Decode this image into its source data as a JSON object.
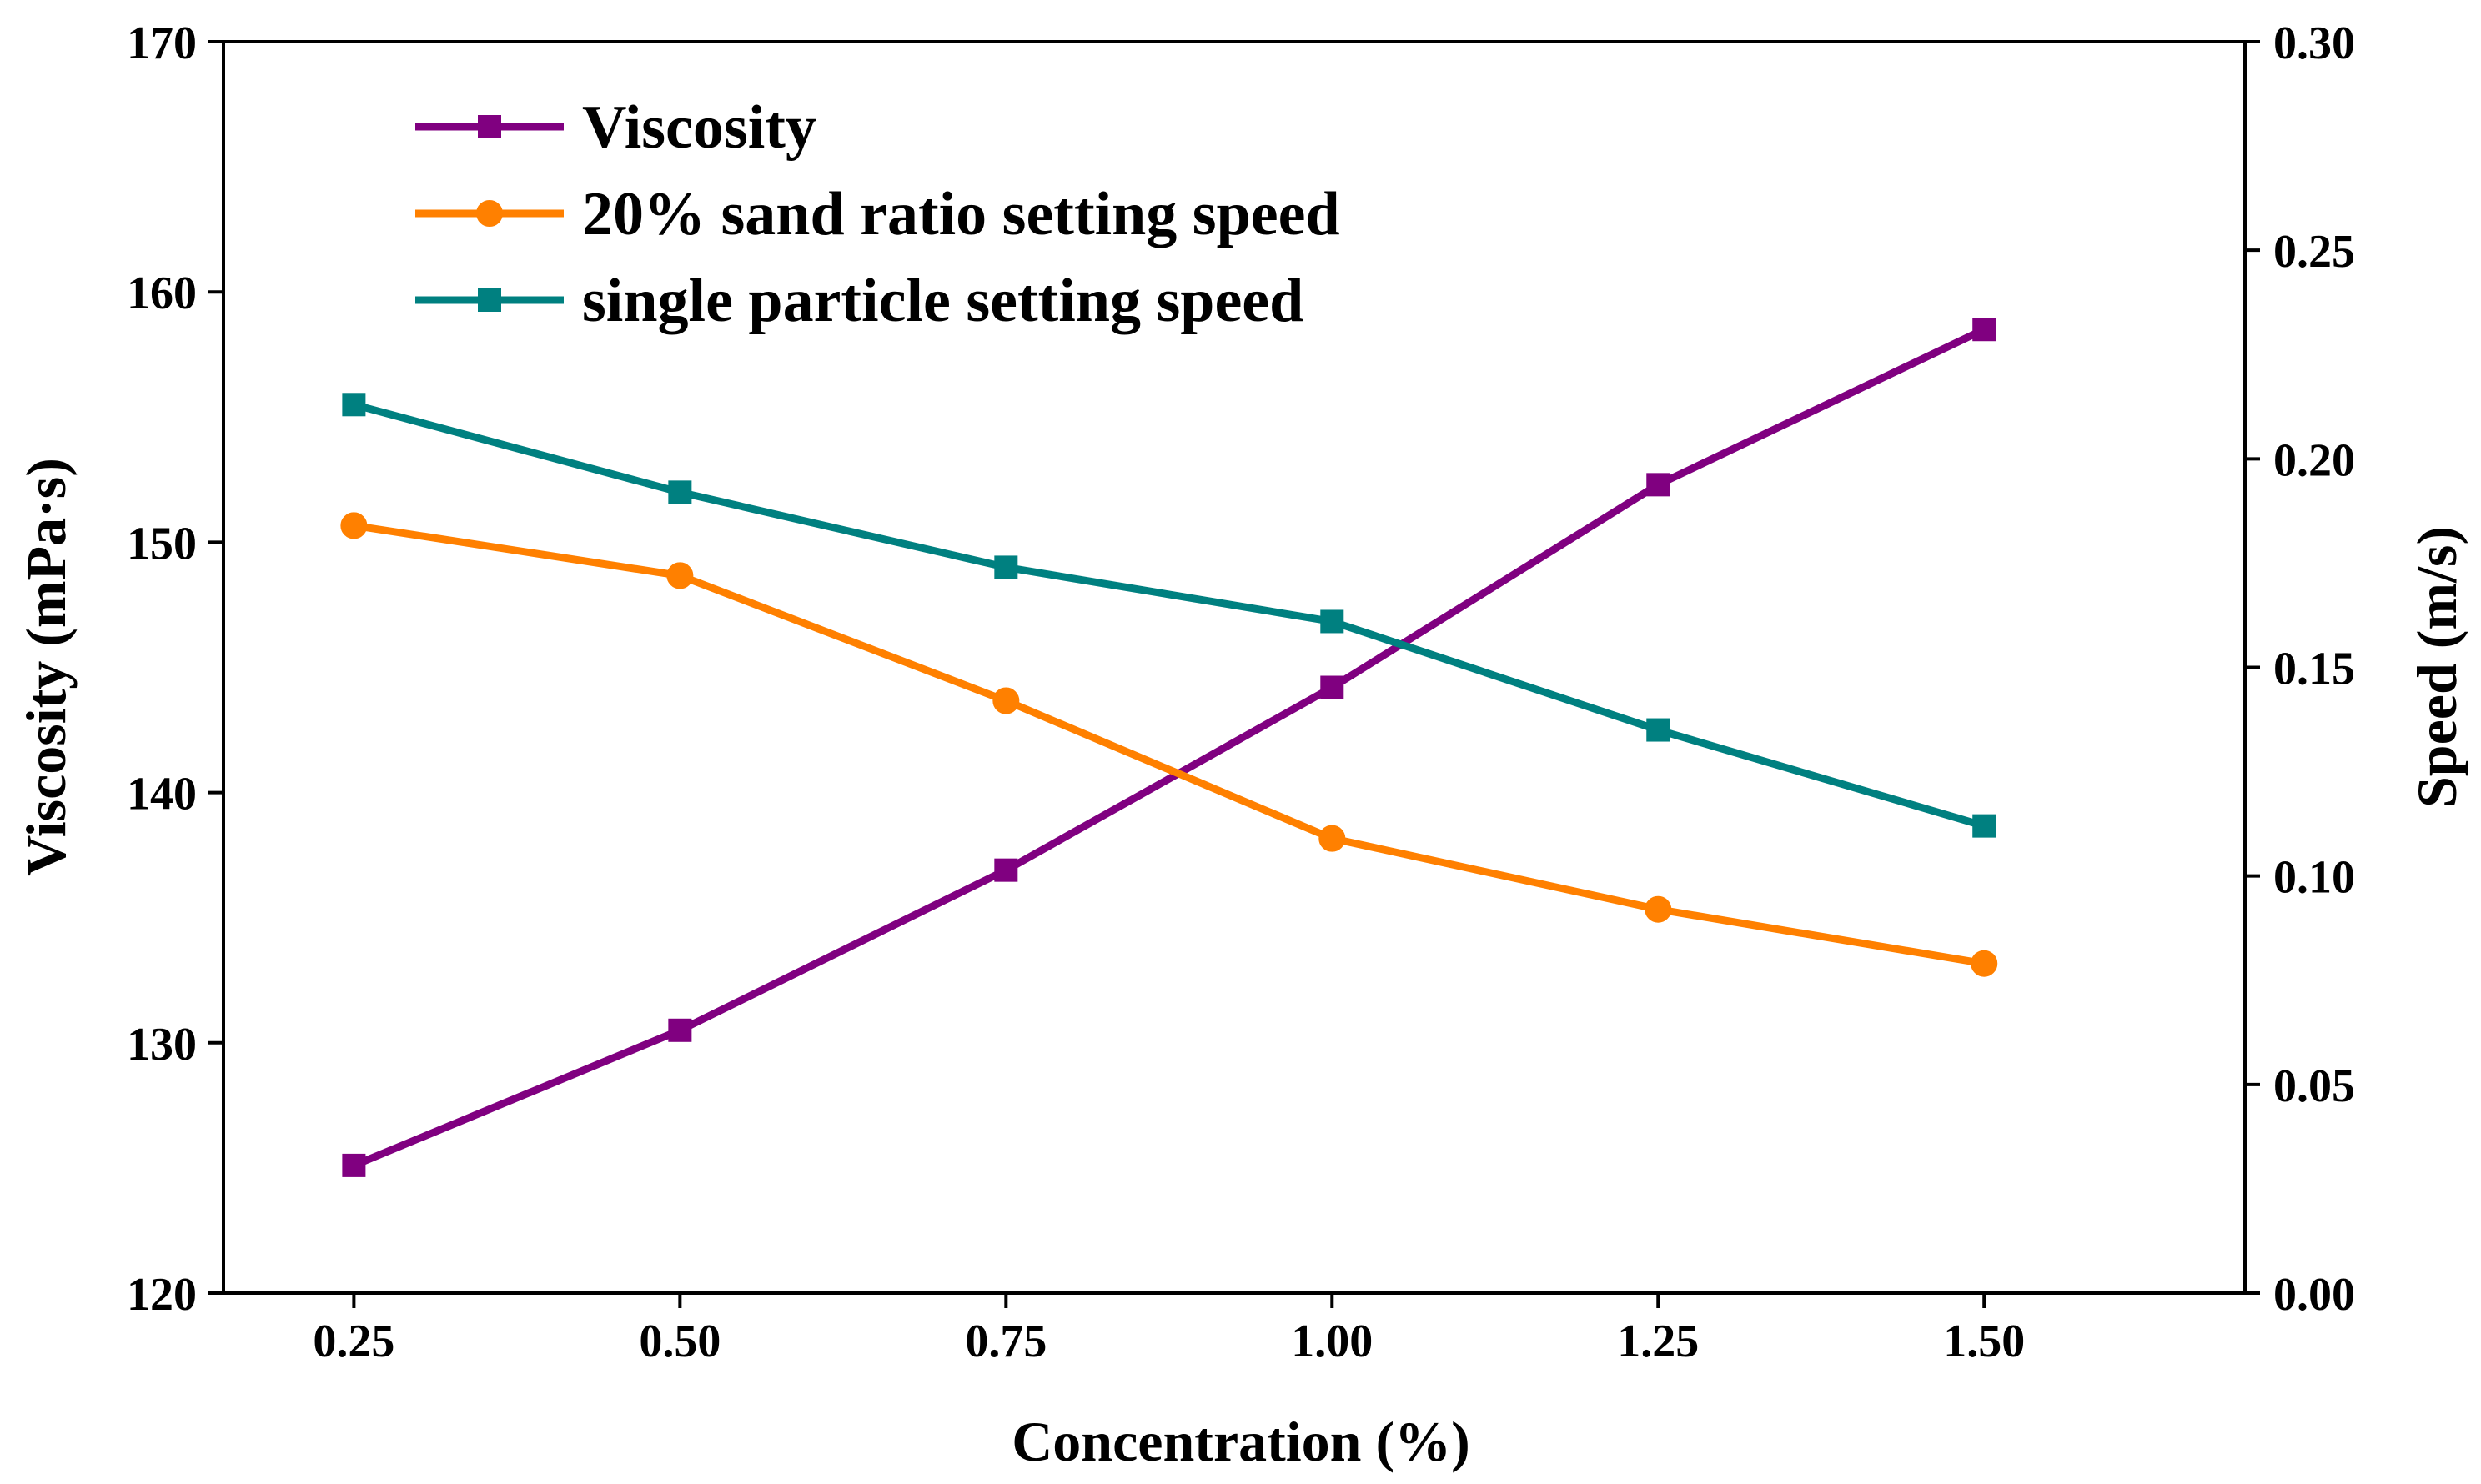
{
  "chart_data": {
    "type": "line",
    "xlabel": "Concentration (%)",
    "ylabel_left": "Viscosity (mPa·s)",
    "ylabel_right": "Speed (m/s)",
    "x": [
      0.25,
      0.5,
      0.75,
      1.0,
      1.25,
      1.5
    ],
    "x_tick_labels": [
      "0.25",
      "0.50",
      "0.75",
      "1.00",
      "1.25",
      "1.50"
    ],
    "xlim": [
      0.15,
      1.7
    ],
    "ylim_left": [
      120,
      170
    ],
    "ylim_right": [
      0,
      0.3
    ],
    "y_left_ticks": [
      "120",
      "130",
      "140",
      "150",
      "160",
      "170"
    ],
    "y_right_ticks": [
      "0.00",
      "0.05",
      "0.10",
      "0.15",
      "0.20",
      "0.25",
      "0.30"
    ],
    "legend_position": "top-left",
    "grid": false,
    "series": [
      {
        "name": "Viscosity",
        "axis": "left",
        "marker": "square",
        "color": "#800080",
        "values": [
          125.1,
          130.5,
          136.9,
          144.2,
          152.3,
          158.5
        ]
      },
      {
        "name": "20% sand ratio setting speed",
        "axis": "right",
        "marker": "circle",
        "color": "#FF8000",
        "values": [
          0.184,
          0.172,
          0.142,
          0.109,
          0.092,
          0.079
        ]
      },
      {
        "name": "single particle setting speed",
        "axis": "right",
        "marker": "square",
        "color": "#008080",
        "values": [
          0.213,
          0.192,
          0.174,
          0.161,
          0.135,
          0.112
        ]
      }
    ]
  }
}
